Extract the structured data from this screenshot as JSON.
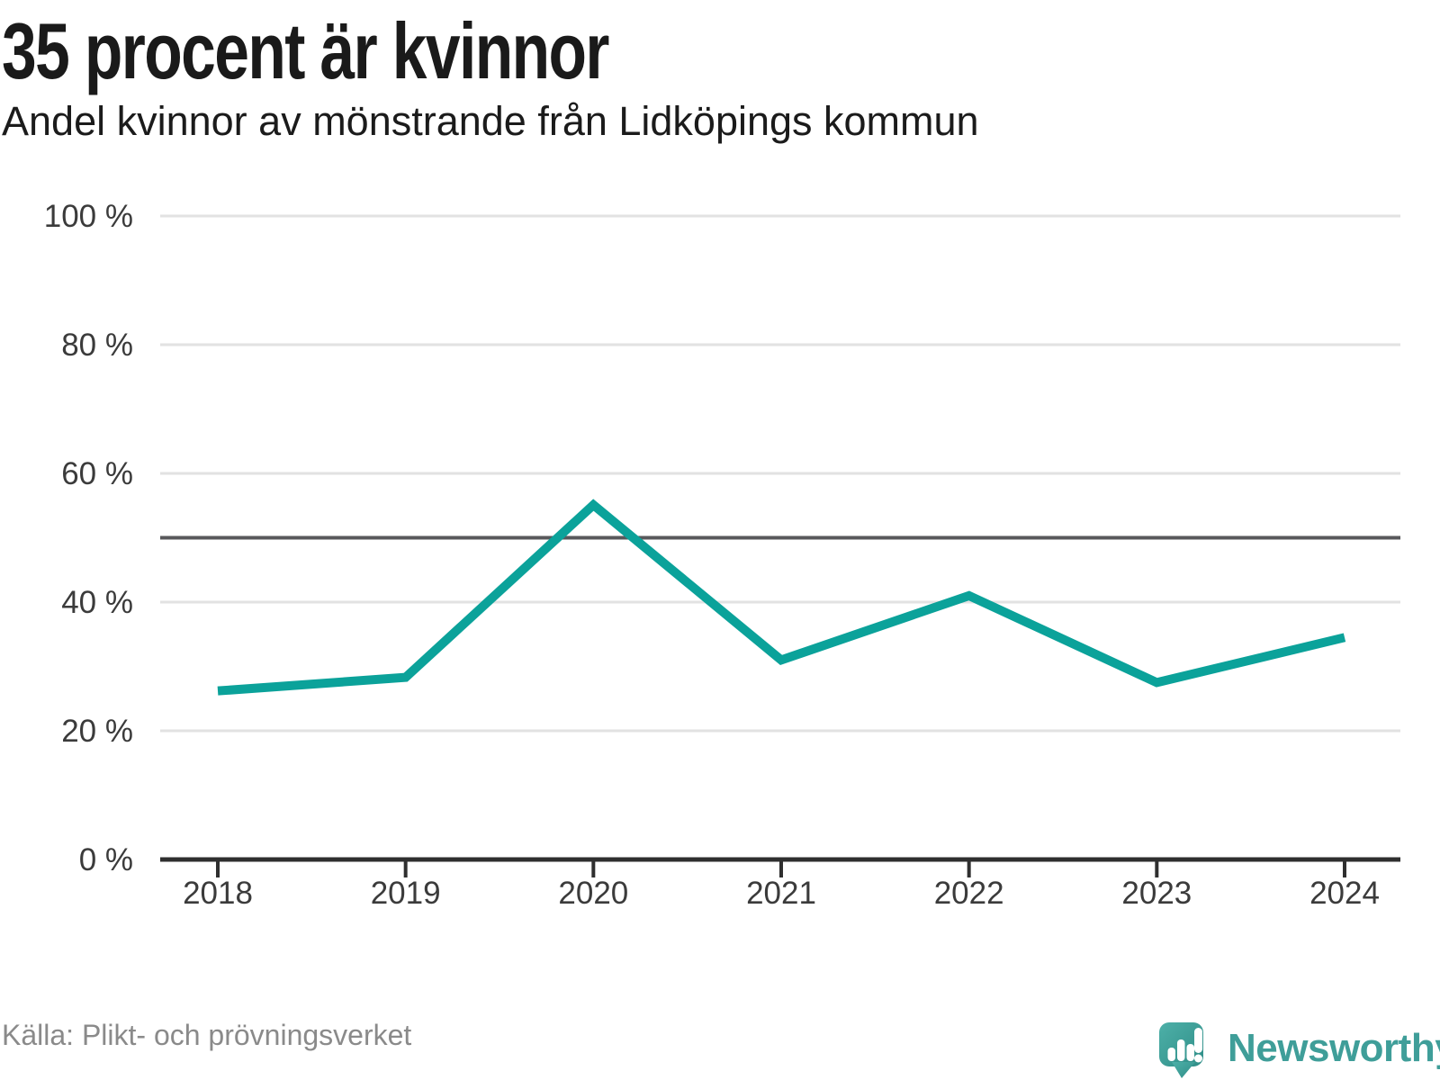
{
  "header": {
    "title": "35 procent är kvinnor",
    "subtitle": "Andel kvinnor av mönstrande från Lidköpings kommun"
  },
  "chart_data": {
    "type": "line",
    "title": "35 procent är kvinnor",
    "subtitle": "Andel kvinnor av mönstrande från Lidköpings kommun",
    "x": [
      "2018",
      "2019",
      "2020",
      "2021",
      "2022",
      "2023",
      "2024"
    ],
    "series": [
      {
        "name": "Andel kvinnor av mönstrande",
        "values": [
          26.2,
          28.3,
          55.1,
          31.0,
          41.0,
          27.5,
          34.5
        ]
      }
    ],
    "unit": "%",
    "ylim": [
      0,
      100
    ],
    "yticks": [
      0,
      20,
      40,
      60,
      80,
      100
    ],
    "ytick_labels": [
      "0 %",
      "20 %",
      "40 %",
      "60 %",
      "80 %",
      "100 %"
    ],
    "reference_line": 50,
    "grid": "horizontal",
    "legend": "none"
  },
  "footer": {
    "source": "Källa: Plikt- och prövningsverket",
    "brand": "Newsworthy",
    "logo_icon": "newsworthy-chart-speech-bubble-icon"
  },
  "colors": {
    "accent": "#0ba29a",
    "reference_line": "#58585b",
    "grid_line": "#e2e2e2",
    "axis": "#2f2f2f",
    "tick_text": "#3b3b3b",
    "source_text": "#8a8a8a",
    "brand_teal": "#3f9e99",
    "logo_gradient_from": "#4db0a8",
    "logo_gradient_to": "#2f8d87"
  }
}
